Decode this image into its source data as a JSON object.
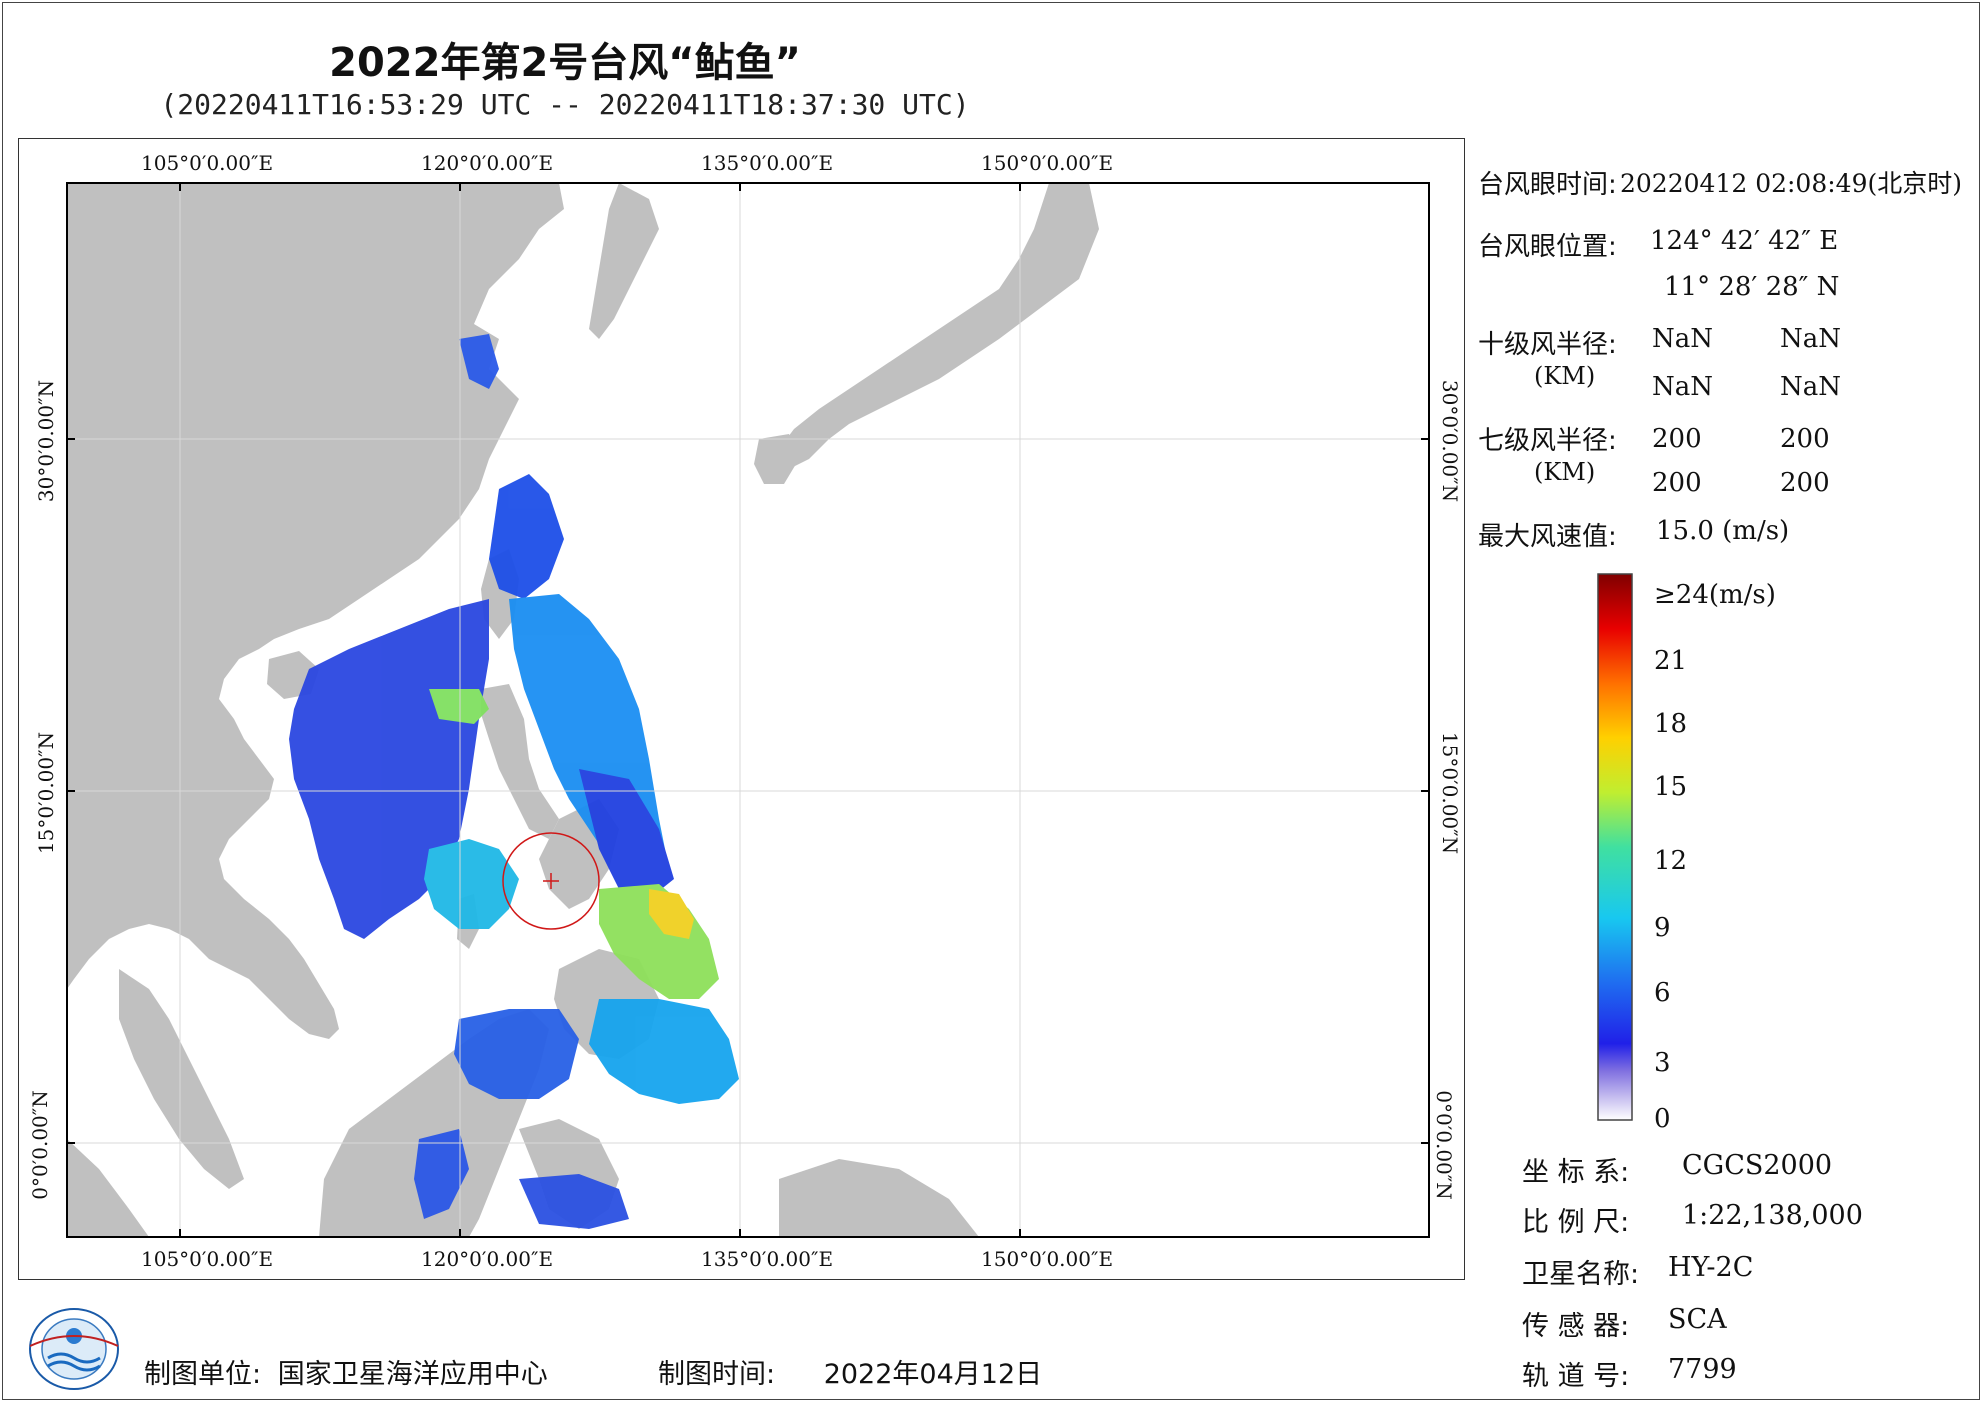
{
  "title": "2022年第2号台风“鲇鱼”",
  "subtitle": "(20220411T16:53:29 UTC -- 20220411T18:37:30 UTC)",
  "map": {
    "lon_labels": [
      "105°0′0.00″E",
      "120°0′0.00″E",
      "135°0′0.00″E",
      "150°0′0.00″E"
    ],
    "lat_labels": [
      "30°0′0.00″N",
      "15°0′0.00″N",
      "0°0′0.00″N"
    ],
    "typhoon_eye": {
      "lon": 124.71,
      "lat": 11.47
    }
  },
  "info": {
    "eye_time_label": "台风眼时间:",
    "eye_time_value": "20220412 02:08:49(北京时)",
    "eye_pos_label": "台风眼位置:",
    "eye_lon": "124° 42′ 42″ E",
    "eye_lat": "11° 28′ 28″ N",
    "r10_label": "十级风半径:",
    "r7_label": "七级风半径:",
    "km_unit": "(KM)",
    "r10_values": [
      "NaN",
      "NaN",
      "NaN",
      "NaN"
    ],
    "r7_values": [
      "200",
      "200",
      "200",
      "200"
    ],
    "max_wind_label": "最大风速值:",
    "max_wind_value": "15.0  (m/s)"
  },
  "colorbar": {
    "labels": [
      "≥24(m/s)",
      "21",
      "18",
      "15",
      "12",
      "9",
      "6",
      "3",
      "0"
    ]
  },
  "meta": {
    "crs_label": "坐 标 系:",
    "crs_value": "CGCS2000",
    "scale_label": "比 例 尺:",
    "scale_value": "1:22,138,000",
    "sat_label": "卫星名称:",
    "sat_value": "HY-2C",
    "sensor_label": "传 感 器:",
    "sensor_value": "SCA",
    "orbit_label": "轨 道 号:",
    "orbit_value": "7799"
  },
  "footer": {
    "maker_label": "制图单位:",
    "maker_value": "国家卫星海洋应用中心",
    "date_label": "制图时间:",
    "date_value": "2022年04月12日"
  },
  "colors": {
    "land": "#c0c0c0",
    "sea": "#ffffff",
    "eye_circle": "#d01818"
  }
}
